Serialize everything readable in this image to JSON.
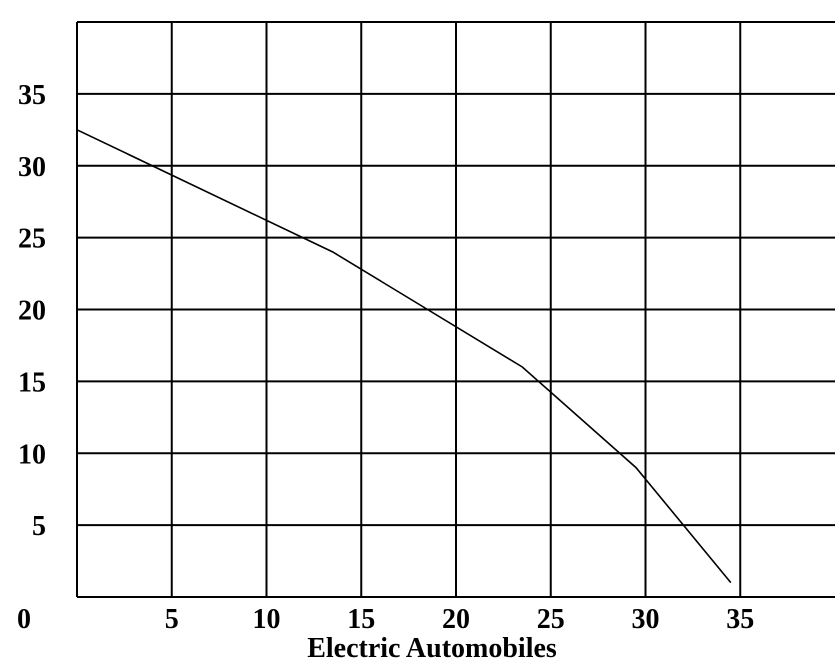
{
  "chart_data": {
    "type": "line",
    "title": "",
    "xlabel": "Electric Automobiles",
    "ylabel": "",
    "xlim": [
      0,
      40
    ],
    "ylim": [
      0,
      40
    ],
    "x_ticks": [
      0,
      5,
      10,
      15,
      20,
      25,
      30,
      35
    ],
    "y_ticks": [
      5,
      10,
      15,
      20,
      25,
      30,
      35
    ],
    "grid": true,
    "legend": "none",
    "series": [
      {
        "x": [
          0,
          13.5,
          23.5,
          29.5,
          34.5
        ],
        "y": [
          32.5,
          24,
          16,
          9,
          1
        ]
      }
    ]
  }
}
